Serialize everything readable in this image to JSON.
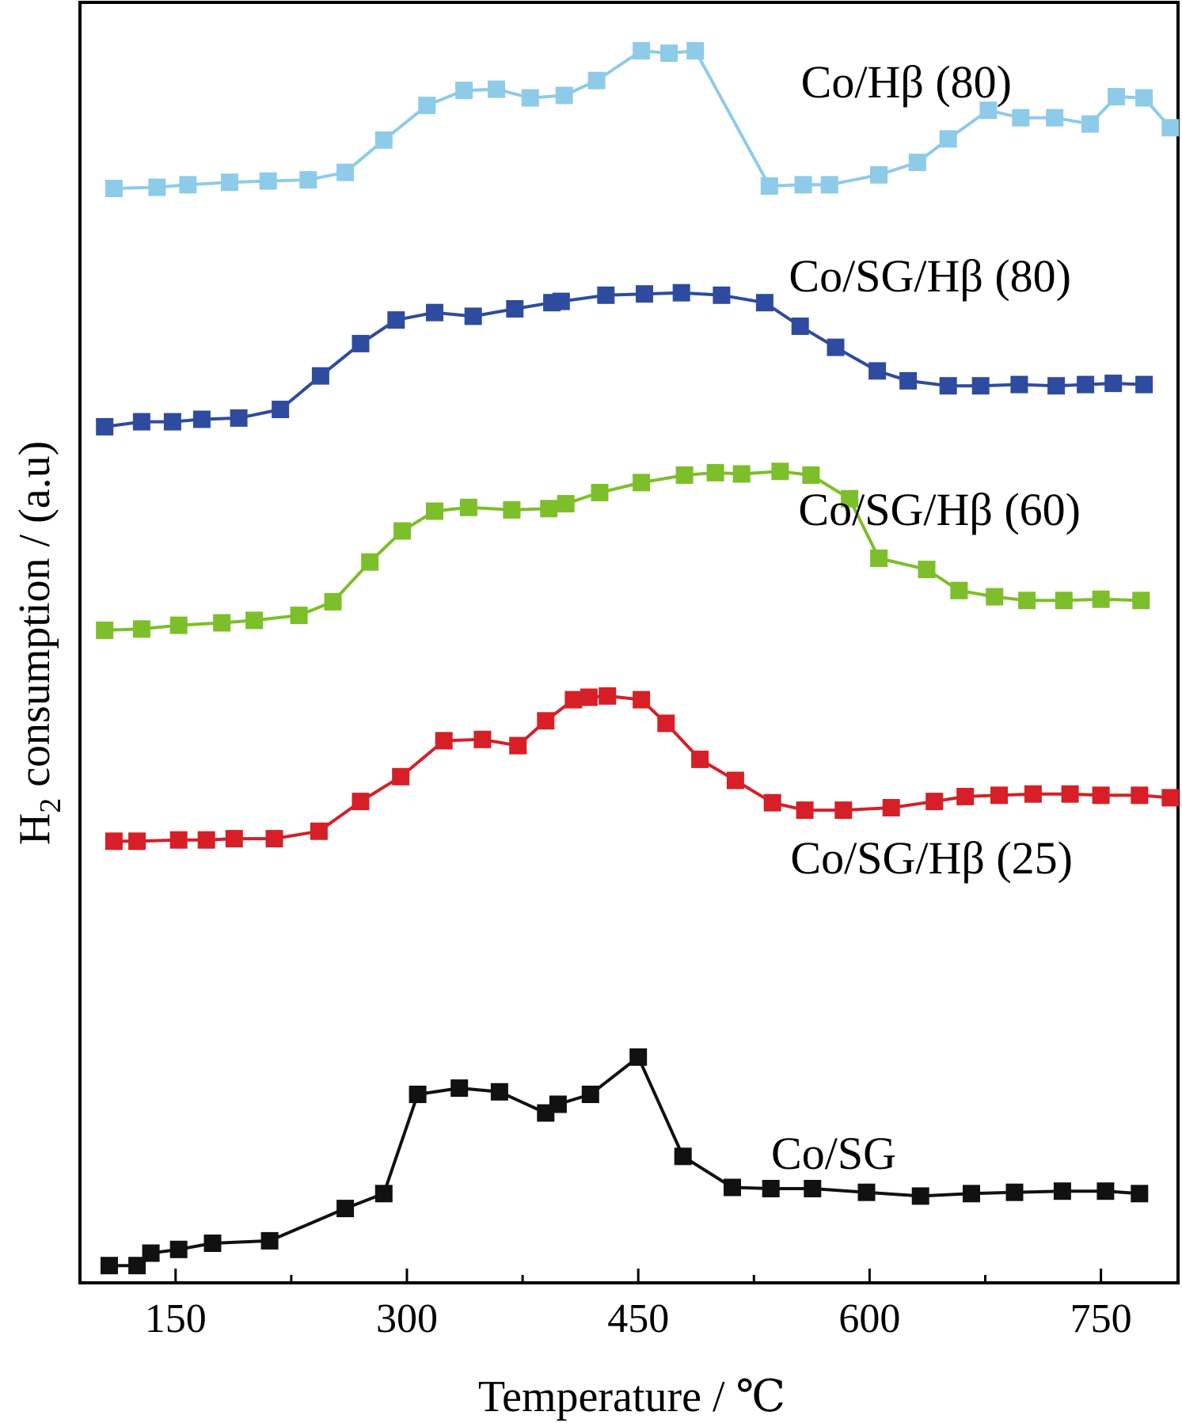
{
  "chart_data": {
    "type": "line",
    "xlabel": "Temperature / ℃",
    "ylabel_main": "H",
    "ylabel_sub": "2",
    "ylabel_rest": " consumption / (a.u)",
    "xlim": [
      88,
      800
    ],
    "ylim": [
      0,
      100
    ],
    "xticks": [
      150,
      300,
      450,
      600,
      750
    ],
    "x_minor_ticks": [
      225,
      375,
      525,
      675
    ],
    "grid": false,
    "series": [
      {
        "name": "Co/Hβ (80)",
        "color": "#8ecbe8",
        "x": [
          110,
          138,
          158,
          185,
          210,
          236,
          260,
          285,
          313,
          337,
          358,
          380,
          402,
          423,
          452,
          470,
          487,
          535,
          557,
          574,
          606,
          631,
          651,
          677,
          698,
          720,
          743,
          760,
          778,
          795
        ],
        "y": [
          88.0,
          88.1,
          88.3,
          88.5,
          88.6,
          88.7,
          89.3,
          91.9,
          94.7,
          95.9,
          96.0,
          95.3,
          95.5,
          96.7,
          99.1,
          98.9,
          99.1,
          88.2,
          88.3,
          88.3,
          89.1,
          90.1,
          92.0,
          94.3,
          93.7,
          93.7,
          93.2,
          95.4,
          95.3,
          92.9
        ]
      },
      {
        "name": "Co/SG/Hβ (80)",
        "color": "#2e4ba0",
        "x": [
          104,
          128,
          148,
          167,
          191,
          218,
          244,
          270,
          293,
          318,
          343,
          370,
          394,
          400,
          429,
          454,
          478,
          504,
          532,
          555,
          578,
          605,
          625,
          651,
          672,
          697,
          721,
          740,
          758,
          778
        ],
        "y": [
          68.8,
          69.2,
          69.2,
          69.4,
          69.5,
          70.2,
          72.9,
          75.5,
          77.4,
          78.0,
          77.7,
          78.3,
          78.8,
          78.9,
          79.4,
          79.5,
          79.6,
          79.4,
          78.8,
          76.9,
          75.2,
          73.3,
          72.5,
          72.1,
          72.1,
          72.2,
          72.1,
          72.2,
          72.3,
          72.2
        ]
      },
      {
        "name": "Co/SG/Hβ (60)",
        "color": "#7cbf2a",
        "x": [
          104,
          128,
          152,
          180,
          201,
          230,
          252,
          276,
          297,
          318,
          340,
          368,
          392,
          403,
          425,
          452,
          480,
          500,
          517,
          542,
          562,
          587,
          606,
          637,
          658,
          681,
          702,
          726,
          750,
          776
        ],
        "y": [
          52.4,
          52.5,
          52.8,
          53.0,
          53.2,
          53.6,
          54.7,
          57.9,
          60.4,
          62.0,
          62.3,
          62.1,
          62.2,
          62.6,
          63.5,
          64.3,
          64.9,
          65.1,
          65.0,
          65.2,
          64.9,
          63.0,
          58.2,
          57.3,
          55.6,
          55.1,
          54.8,
          54.8,
          54.9,
          54.8
        ]
      },
      {
        "name": "Co/SG/Hβ (25)",
        "color": "#d61f26",
        "x": [
          110,
          125,
          152,
          170,
          188,
          214,
          243,
          270,
          296,
          324,
          349,
          372,
          390,
          408,
          418,
          430,
          452,
          468,
          490,
          513,
          537,
          558,
          583,
          614,
          642,
          662,
          684,
          706,
          730,
          750,
          775,
          795
        ],
        "y": [
          35.4,
          35.4,
          35.5,
          35.5,
          35.6,
          35.6,
          36.2,
          38.6,
          40.6,
          43.5,
          43.6,
          43.1,
          45.1,
          46.8,
          47.0,
          47.1,
          46.8,
          44.9,
          42.0,
          40.3,
          38.5,
          37.9,
          37.9,
          38.1,
          38.6,
          39.0,
          39.1,
          39.2,
          39.2,
          39.1,
          39.1,
          38.9
        ]
      },
      {
        "name": "Co/SG",
        "color": "#111111",
        "x": [
          107,
          125,
          134,
          152,
          174,
          211,
          260,
          285,
          307,
          334,
          360,
          390,
          398,
          419,
          450,
          479,
          511,
          536,
          563,
          598,
          633,
          666,
          694,
          725,
          753,
          775
        ],
        "y": [
          1.2,
          1.2,
          2.2,
          2.5,
          3.0,
          3.2,
          5.8,
          7.0,
          15.0,
          15.5,
          15.2,
          13.5,
          14.2,
          15.0,
          18.0,
          10.0,
          7.5,
          7.4,
          7.4,
          7.1,
          6.8,
          7.0,
          7.1,
          7.2,
          7.2,
          7.0
        ]
      }
    ],
    "labels": [
      {
        "text": "Co/Hβ (80)",
        "series": 0
      },
      {
        "text": "Co/SG/Hβ (80)",
        "series": 1
      },
      {
        "text": "Co/SG/Hβ (60)",
        "series": 2
      },
      {
        "text": "Co/SG/Hβ (25)",
        "series": 3
      },
      {
        "text": "Co/SG",
        "series": 4
      }
    ]
  }
}
